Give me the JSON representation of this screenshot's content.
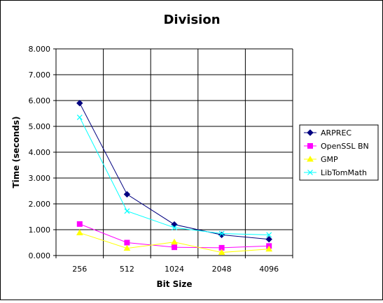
{
  "chart_data": {
    "type": "line",
    "title": "Division",
    "xlabel": "Bit Size",
    "ylabel": "Time (seconds)",
    "categories": [
      "256",
      "512",
      "1024",
      "2048",
      "4096"
    ],
    "ylim": [
      0,
      8
    ],
    "yticks": [
      "0.000",
      "1.000",
      "2.000",
      "3.000",
      "4.000",
      "5.000",
      "6.000",
      "7.000",
      "8.000"
    ],
    "grid": true,
    "legend_position": "right",
    "series": [
      {
        "name": "ARPREC",
        "color": "#000080",
        "marker": "diamond",
        "values": [
          5.9,
          2.37,
          1.2,
          0.8,
          0.63
        ]
      },
      {
        "name": "OpenSSL BN",
        "color": "#ff00ff",
        "marker": "square",
        "values": [
          1.22,
          0.5,
          0.32,
          0.3,
          0.37
        ]
      },
      {
        "name": "GMP",
        "color": "#ffff00",
        "marker": "triangle",
        "values": [
          0.88,
          0.28,
          0.52,
          0.12,
          0.25
        ]
      },
      {
        "name": "LibTomMath",
        "color": "#00ffff",
        "marker": "x",
        "values": [
          5.35,
          1.72,
          1.08,
          0.85,
          0.8
        ]
      }
    ]
  }
}
